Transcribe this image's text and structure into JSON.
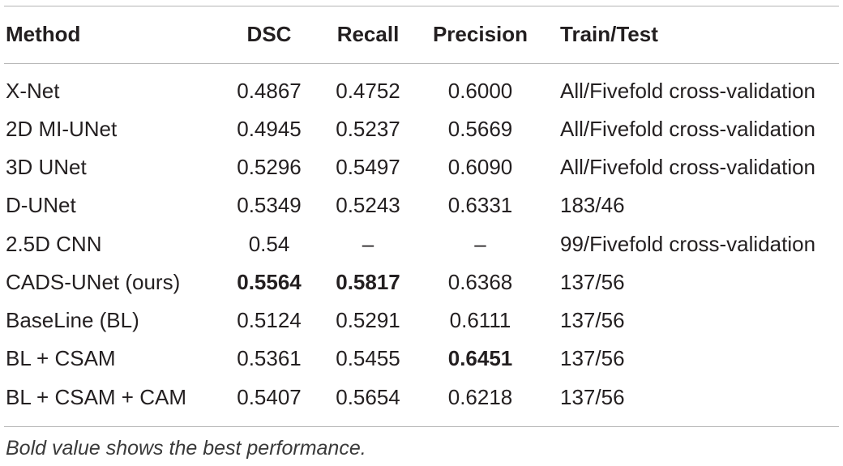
{
  "table": {
    "headers": {
      "method": "Method",
      "dsc": "DSC",
      "recall": "Recall",
      "precision": "Precision",
      "train_test": "Train/Test"
    },
    "rows": [
      {
        "method": "X-Net",
        "dsc": "0.4867",
        "recall": "0.4752",
        "precision": "0.6000",
        "train_test": "All/Fivefold cross-validation"
      },
      {
        "method": "2D MI-UNet",
        "dsc": "0.4945",
        "recall": "0.5237",
        "precision": "0.5669",
        "train_test": "All/Fivefold cross-validation"
      },
      {
        "method": "3D UNet",
        "dsc": "0.5296",
        "recall": "0.5497",
        "precision": "0.6090",
        "train_test": "All/Fivefold cross-validation"
      },
      {
        "method": "D-UNet",
        "dsc": "0.5349",
        "recall": "0.5243",
        "precision": "0.6331",
        "train_test": "183/46"
      },
      {
        "method": "2.5D CNN",
        "dsc": "0.54",
        "recall": "–",
        "precision": "–",
        "train_test": "99/Fivefold cross-validation"
      },
      {
        "method": "CADS-UNet (ours)",
        "dsc": "0.5564",
        "recall": "0.5817",
        "precision": "0.6368",
        "train_test": "137/56"
      },
      {
        "method": "BaseLine (BL)",
        "dsc": "0.5124",
        "recall": "0.5291",
        "precision": "0.6111",
        "train_test": "137/56"
      },
      {
        "method": "BL + CSAM",
        "dsc": "0.5361",
        "recall": "0.5455",
        "precision": "0.6451",
        "train_test": "137/56"
      },
      {
        "method": "BL + CSAM + CAM",
        "dsc": "0.5407",
        "recall": "0.5654",
        "precision": "0.6218",
        "train_test": "137/56"
      }
    ],
    "bold_cells": [
      "5.dsc",
      "5.recall",
      "7.precision"
    ],
    "footnote": "Bold value shows the best performance."
  }
}
